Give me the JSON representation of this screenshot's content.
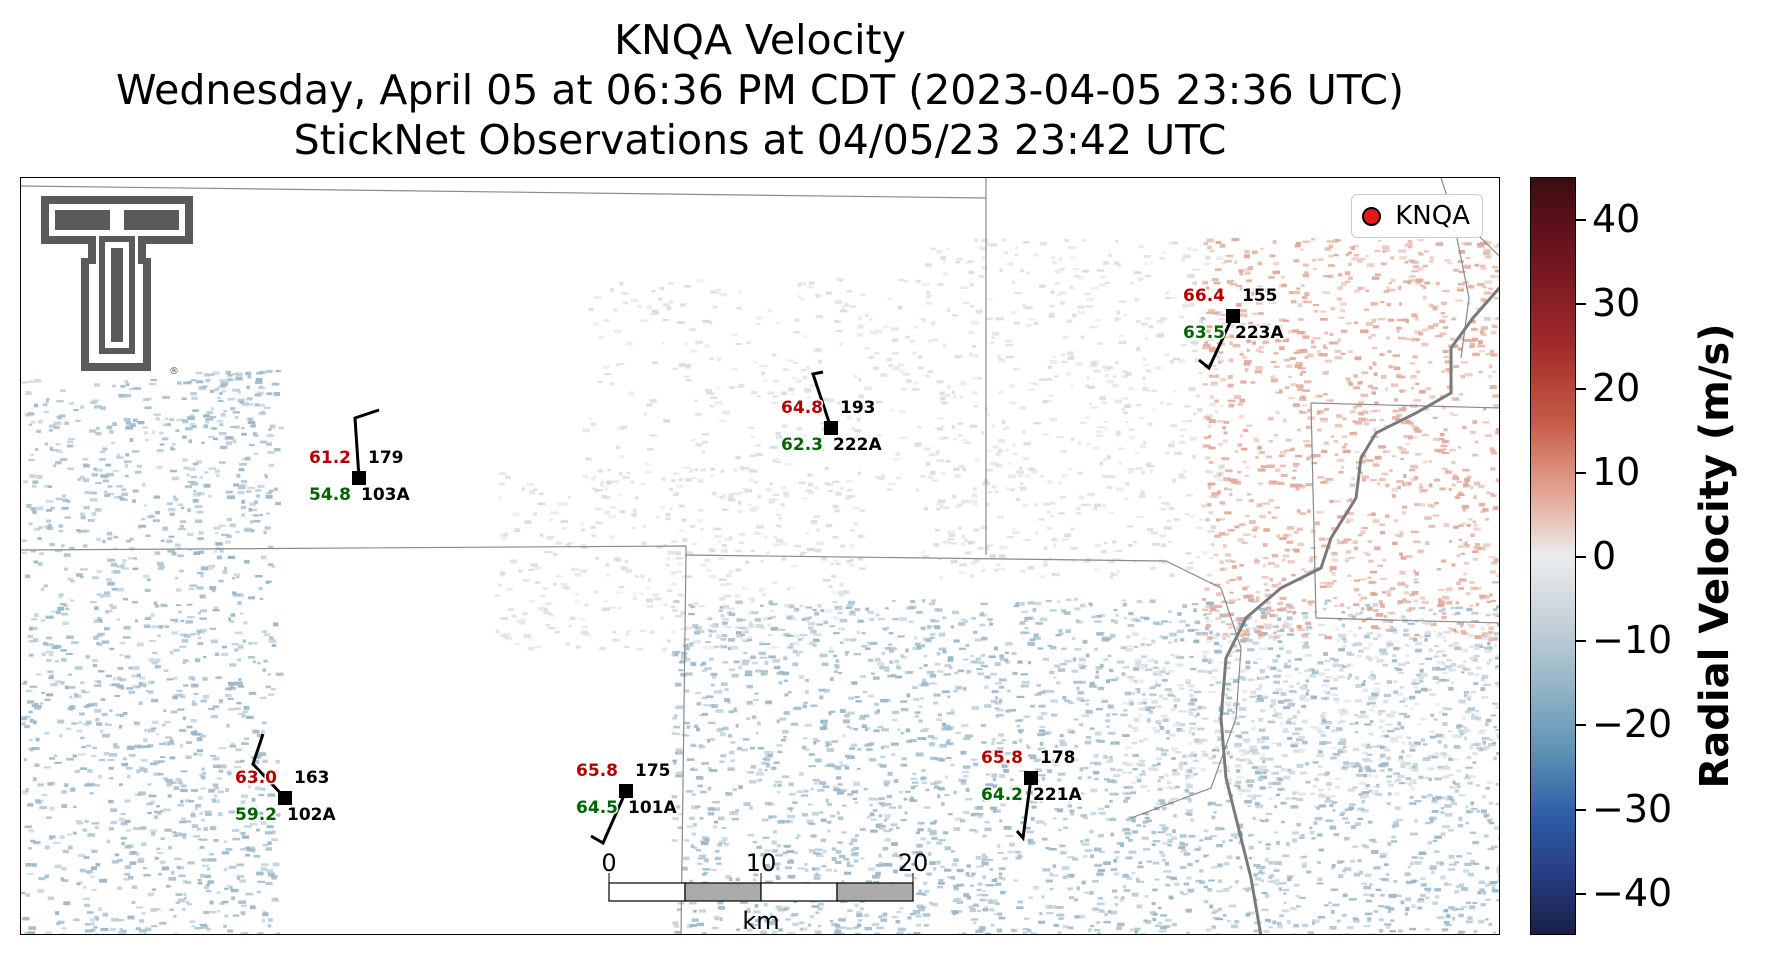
{
  "title": {
    "line1": "KNQA Velocity",
    "line2": "Wednesday, April 05 at 06:36 PM CDT (2023-04-05 23:36 UTC)",
    "line3": "StickNet Observations at 04/05/23 23:42 UTC"
  },
  "legend": {
    "label": "KNQA",
    "marker_color": "#e8171b"
  },
  "colorbar": {
    "label": "Radial Velocity (m/s)",
    "range": [
      -45,
      45
    ],
    "ticks": [
      "40",
      "30",
      "20",
      "10",
      "0",
      "−10",
      "−20",
      "−30",
      "−40"
    ],
    "tick_values": [
      40,
      30,
      20,
      10,
      0,
      -10,
      -20,
      -30,
      -40
    ]
  },
  "scale_bar": {
    "labels": [
      "0",
      "10",
      "20"
    ],
    "unit": "km"
  },
  "stations": [
    {
      "id": "103A",
      "temp": "61.2",
      "dew": "54.8",
      "pressure": "179"
    },
    {
      "id": "222A",
      "temp": "64.8",
      "dew": "62.3",
      "pressure": "193"
    },
    {
      "id": "223A",
      "temp": "66.4",
      "dew": "63.5",
      "pressure": "155"
    },
    {
      "id": "102A",
      "temp": "63.0",
      "dew": "59.2",
      "pressure": "163"
    },
    {
      "id": "101A",
      "temp": "65.8",
      "dew": "64.5",
      "pressure": "175"
    },
    {
      "id": "221A",
      "temp": "65.8",
      "dew": "64.2",
      "pressure": "178"
    }
  ],
  "colors": {
    "temp": "#b30000",
    "dew": "#006400",
    "inbound": "#9bb8c9",
    "outbound": "#e2a898",
    "neutral": "#d9dde0"
  },
  "logo": {
    "name": "texas-tech-double-t-logo"
  }
}
